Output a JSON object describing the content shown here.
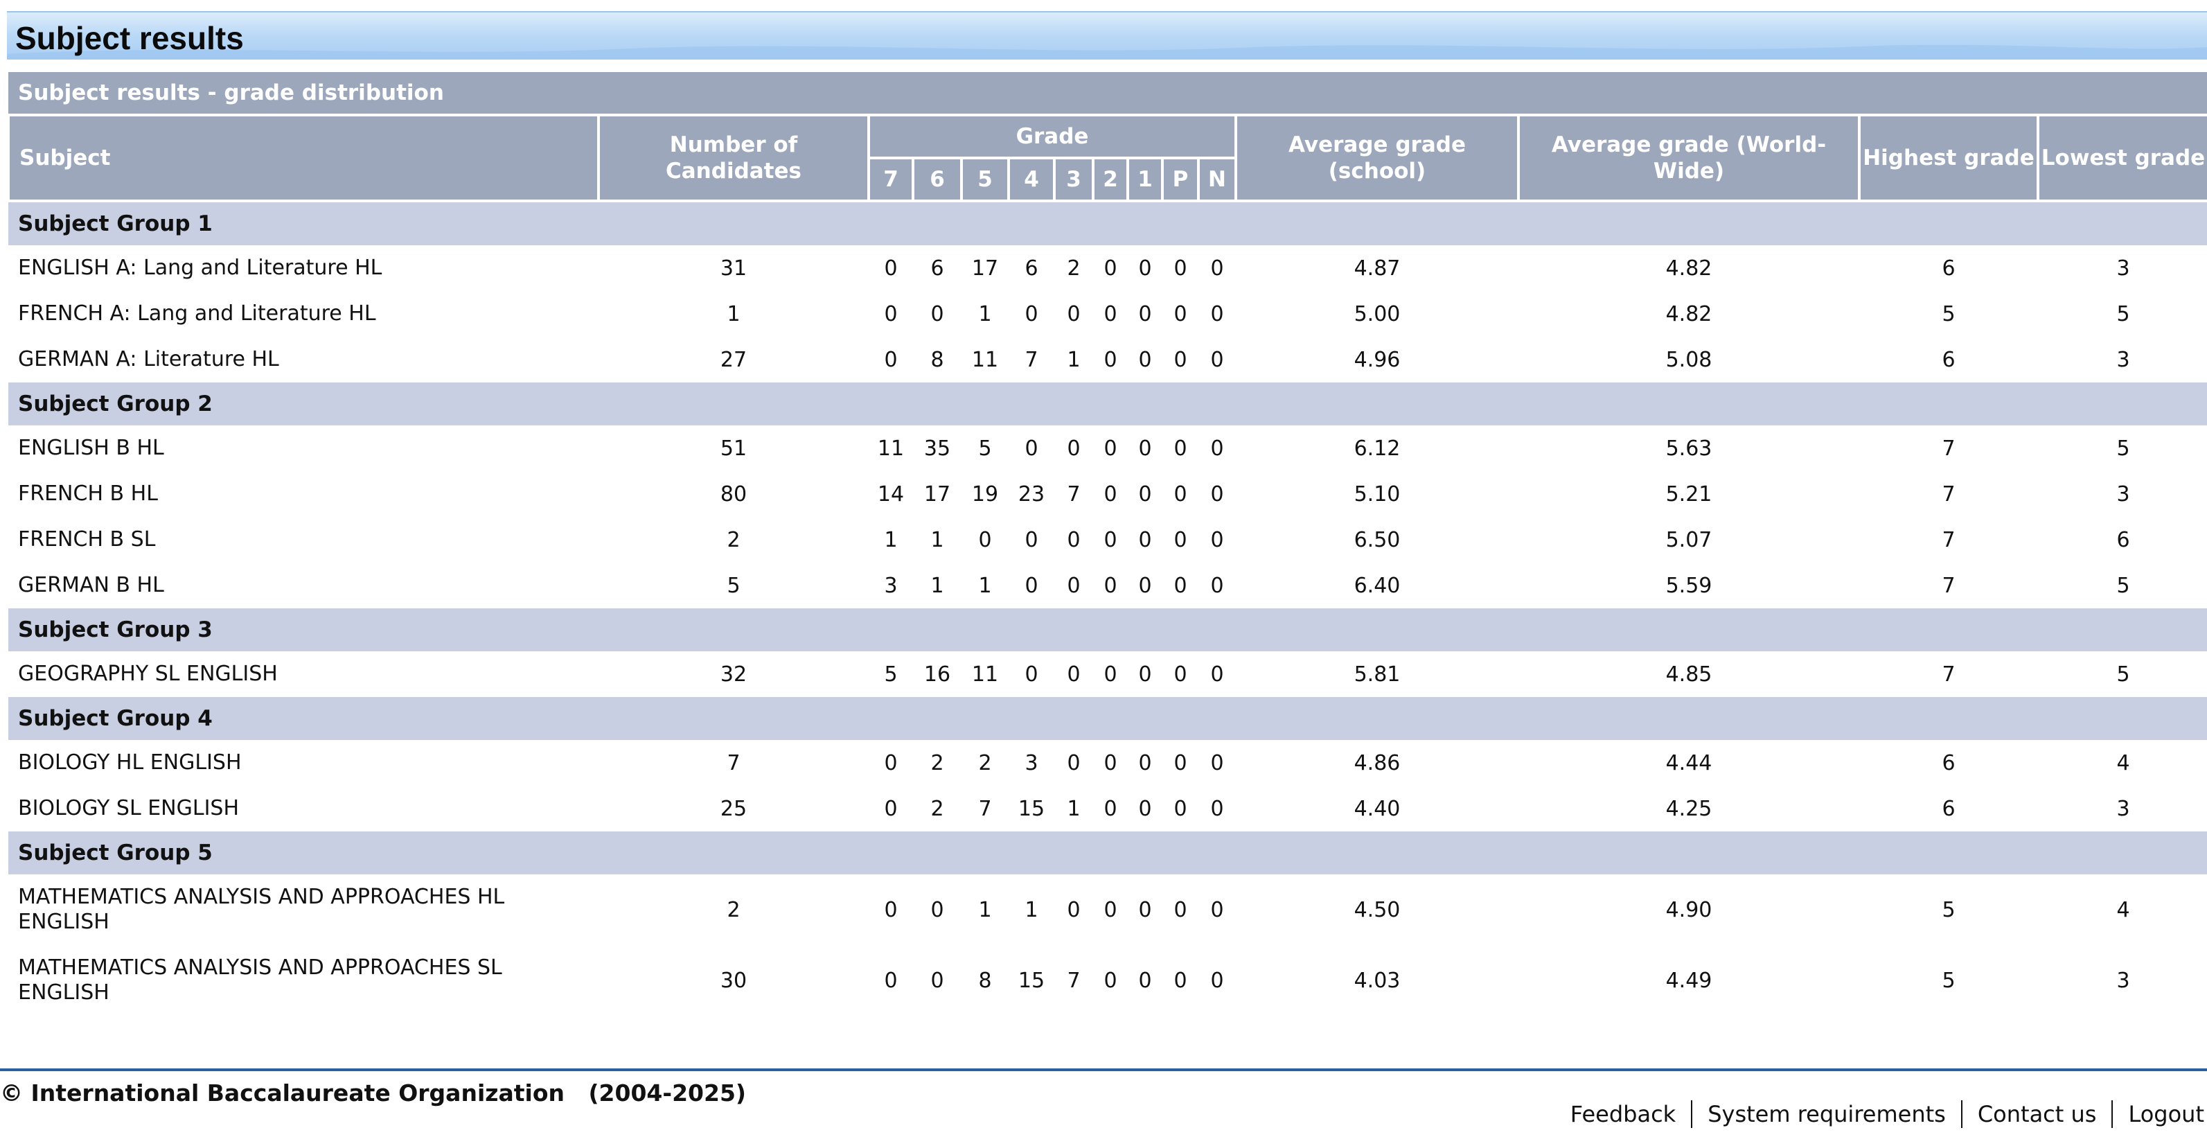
{
  "page": {
    "title": "Subject results"
  },
  "table": {
    "caption": "Subject results - grade distribution",
    "headers": {
      "subject": "Subject",
      "candidates": "Number of Candidates",
      "grade": "Grade",
      "grades": [
        "7",
        "6",
        "5",
        "4",
        "3",
        "2",
        "1",
        "P",
        "N"
      ],
      "avg_school": "Average grade (school)",
      "avg_world": "Average grade (World-Wide)",
      "highest": "Highest grade",
      "lowest": "Lowest grade"
    },
    "groups": [
      {
        "name": "Subject Group 1",
        "rows": [
          {
            "subject": "ENGLISH A: Lang and Literature HL",
            "candidates": "31",
            "g": [
              "0",
              "6",
              "17",
              "6",
              "2",
              "0",
              "0",
              "0",
              "0"
            ],
            "avg_school": "4.87",
            "avg_world": "4.82",
            "highest": "6",
            "lowest": "3"
          },
          {
            "subject": "FRENCH A: Lang and Literature HL",
            "candidates": "1",
            "g": [
              "0",
              "0",
              "1",
              "0",
              "0",
              "0",
              "0",
              "0",
              "0"
            ],
            "avg_school": "5.00",
            "avg_world": "4.82",
            "highest": "5",
            "lowest": "5"
          },
          {
            "subject": "GERMAN A: Literature HL",
            "candidates": "27",
            "g": [
              "0",
              "8",
              "11",
              "7",
              "1",
              "0",
              "0",
              "0",
              "0"
            ],
            "avg_school": "4.96",
            "avg_world": "5.08",
            "highest": "6",
            "lowest": "3"
          }
        ]
      },
      {
        "name": "Subject Group 2",
        "rows": [
          {
            "subject": "ENGLISH B HL",
            "candidates": "51",
            "g": [
              "11",
              "35",
              "5",
              "0",
              "0",
              "0",
              "0",
              "0",
              "0"
            ],
            "avg_school": "6.12",
            "avg_world": "5.63",
            "highest": "7",
            "lowest": "5"
          },
          {
            "subject": "FRENCH B HL",
            "candidates": "80",
            "g": [
              "14",
              "17",
              "19",
              "23",
              "7",
              "0",
              "0",
              "0",
              "0"
            ],
            "avg_school": "5.10",
            "avg_world": "5.21",
            "highest": "7",
            "lowest": "3"
          },
          {
            "subject": "FRENCH B SL",
            "candidates": "2",
            "g": [
              "1",
              "1",
              "0",
              "0",
              "0",
              "0",
              "0",
              "0",
              "0"
            ],
            "avg_school": "6.50",
            "avg_world": "5.07",
            "highest": "7",
            "lowest": "6"
          },
          {
            "subject": "GERMAN B HL",
            "candidates": "5",
            "g": [
              "3",
              "1",
              "1",
              "0",
              "0",
              "0",
              "0",
              "0",
              "0"
            ],
            "avg_school": "6.40",
            "avg_world": "5.59",
            "highest": "7",
            "lowest": "5"
          }
        ]
      },
      {
        "name": "Subject Group 3",
        "rows": [
          {
            "subject": "GEOGRAPHY SL ENGLISH",
            "candidates": "32",
            "g": [
              "5",
              "16",
              "11",
              "0",
              "0",
              "0",
              "0",
              "0",
              "0"
            ],
            "avg_school": "5.81",
            "avg_world": "4.85",
            "highest": "7",
            "lowest": "5"
          }
        ]
      },
      {
        "name": "Subject Group 4",
        "rows": [
          {
            "subject": "BIOLOGY HL ENGLISH",
            "candidates": "7",
            "g": [
              "0",
              "2",
              "2",
              "3",
              "0",
              "0",
              "0",
              "0",
              "0"
            ],
            "avg_school": "4.86",
            "avg_world": "4.44",
            "highest": "6",
            "lowest": "4"
          },
          {
            "subject": "BIOLOGY SL ENGLISH",
            "candidates": "25",
            "g": [
              "0",
              "2",
              "7",
              "15",
              "1",
              "0",
              "0",
              "0",
              "0"
            ],
            "avg_school": "4.40",
            "avg_world": "4.25",
            "highest": "6",
            "lowest": "3"
          }
        ]
      },
      {
        "name": "Subject Group 5",
        "rows": [
          {
            "subject": "MATHEMATICS ANALYSIS AND APPROACHES HL ENGLISH",
            "candidates": "2",
            "g": [
              "0",
              "0",
              "1",
              "1",
              "0",
              "0",
              "0",
              "0",
              "0"
            ],
            "avg_school": "4.50",
            "avg_world": "4.90",
            "highest": "5",
            "lowest": "4"
          },
          {
            "subject": "MATHEMATICS ANALYSIS AND APPROACHES SL ENGLISH",
            "candidates": "30",
            "g": [
              "0",
              "0",
              "8",
              "15",
              "7",
              "0",
              "0",
              "0",
              "0"
            ],
            "avg_school": "4.03",
            "avg_world": "4.49",
            "highest": "5",
            "lowest": "3"
          }
        ]
      }
    ]
  },
  "footer": {
    "copyright": "© International Baccalaureate Organization   (2004-2025)",
    "links": [
      "Feedback",
      "System requirements",
      "Contact us",
      "Logout"
    ]
  }
}
